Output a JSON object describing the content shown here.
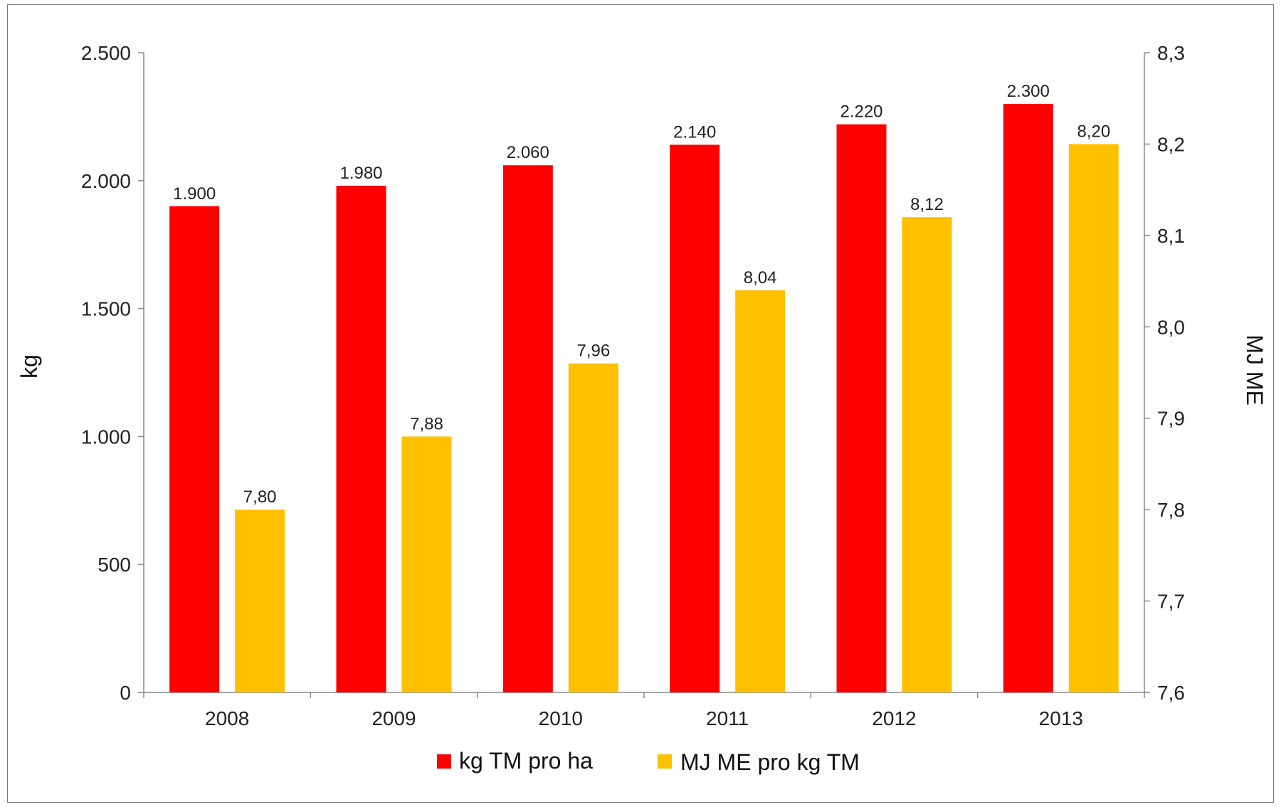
{
  "chart_data": {
    "type": "bar",
    "title": "",
    "categories": [
      "2008",
      "2009",
      "2010",
      "2011",
      "2012",
      "2013"
    ],
    "series": [
      {
        "name": "kg TM pro ha",
        "axis": "left",
        "values": [
          1900,
          1980,
          2060,
          2140,
          2220,
          2300
        ],
        "labels": [
          "1.900",
          "1.980",
          "2.060",
          "2.140",
          "2.220",
          "2.300"
        ],
        "color": "#ff0000"
      },
      {
        "name": "MJ ME pro kg TM",
        "axis": "right",
        "values": [
          7.8,
          7.88,
          7.96,
          8.04,
          8.12,
          8.2
        ],
        "labels": [
          "7,80",
          "7,88",
          "7,96",
          "8,04",
          "8,12",
          "8,20"
        ],
        "color": "#ffc000"
      }
    ],
    "y_left": {
      "label": "kg",
      "ylim": [
        0,
        2500
      ],
      "ticks": [
        0,
        500,
        1000,
        1500,
        2000,
        2500
      ],
      "tick_labels": [
        "0",
        "500",
        "1.000",
        "1.500",
        "2.000",
        "2.500"
      ]
    },
    "y_right": {
      "label": "MJ ME",
      "ylim": [
        7.6,
        8.3
      ],
      "ticks": [
        7.6,
        7.7,
        7.8,
        7.9,
        8.0,
        8.1,
        8.2,
        8.3
      ],
      "tick_labels": [
        "7,6",
        "7,7",
        "7,8",
        "7,9",
        "8,0",
        "8,1",
        "8,2",
        "8,3"
      ]
    },
    "grid": false,
    "legend": "bottom"
  }
}
